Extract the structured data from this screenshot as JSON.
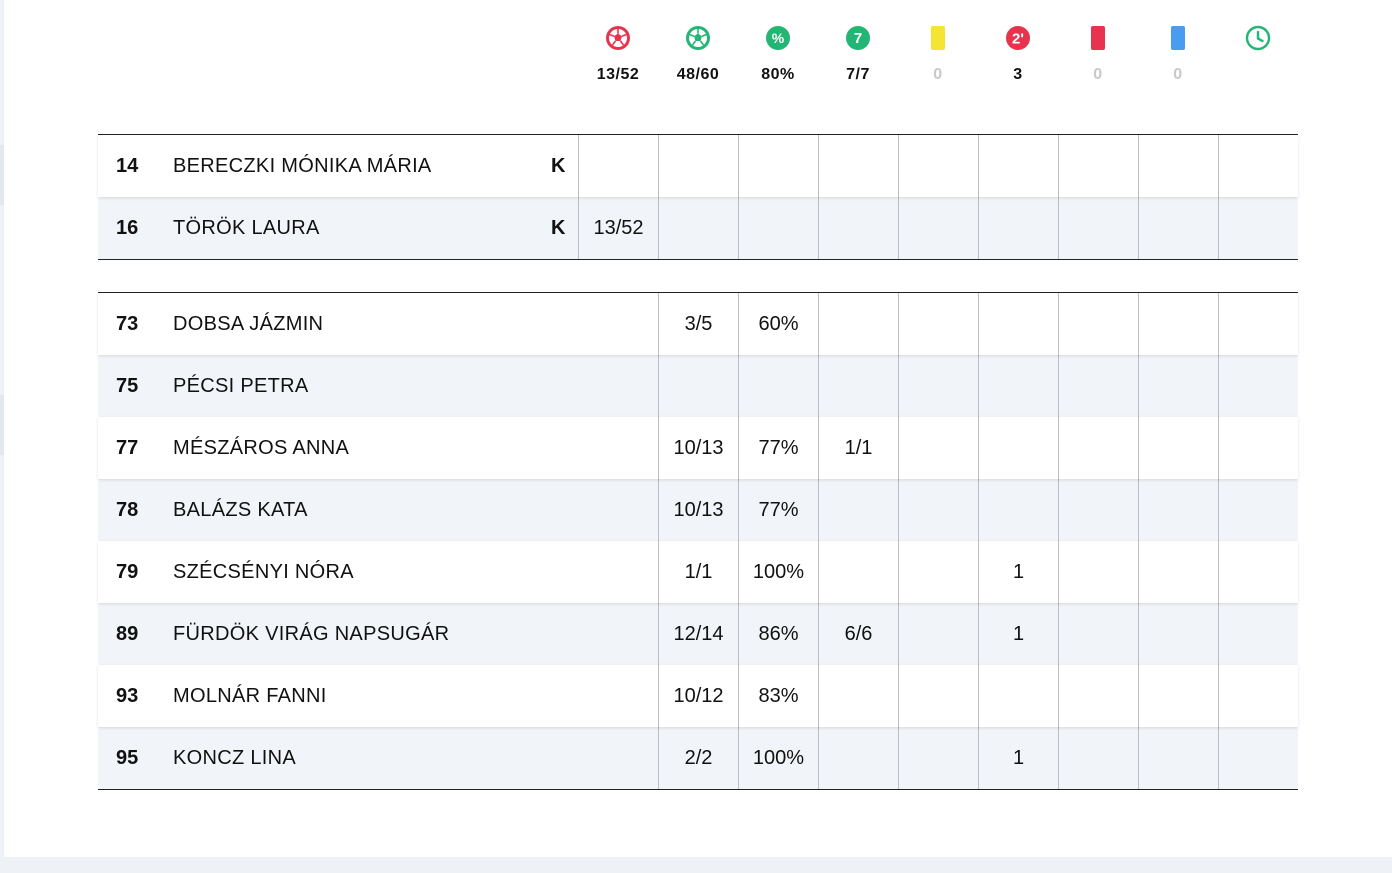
{
  "summary": {
    "stats": [
      {
        "icon": "goalkeeper-ball-icon",
        "value": "13/52",
        "muted": false
      },
      {
        "icon": "goals-ball-icon",
        "value": "48/60",
        "muted": false
      },
      {
        "icon": "percentage-icon",
        "value": "80%",
        "muted": false
      },
      {
        "icon": "seven-meter-icon",
        "value": "7/7",
        "muted": false
      },
      {
        "icon": "yellow-card-icon",
        "value": "0",
        "muted": true
      },
      {
        "icon": "two-minute-suspension-icon",
        "value": "3",
        "muted": false
      },
      {
        "icon": "red-card-icon",
        "value": "0",
        "muted": true
      },
      {
        "icon": "blue-card-icon",
        "value": "0",
        "muted": true
      },
      {
        "icon": "clock-icon",
        "value": "",
        "muted": false
      }
    ],
    "icon_labels": {
      "percent": "%",
      "seven": "7",
      "two_min": "2'"
    }
  },
  "colors": {
    "red": "#e8334f",
    "green": "#22b573",
    "yellow": "#f5e532",
    "blue": "#4a9cf0",
    "muted": "#c8c8c8"
  },
  "goalkeepers": [
    {
      "number": "14",
      "name": "BERECZKI MÓNIKA MÁRIA",
      "role": "K",
      "cells": [
        "",
        "",
        "",
        "",
        "",
        "",
        "",
        "",
        ""
      ]
    },
    {
      "number": "16",
      "name": "TÖRÖK LAURA",
      "role": "K",
      "cells": [
        "13/52",
        "",
        "",
        "",
        "",
        "",
        "",
        "",
        ""
      ]
    }
  ],
  "players": [
    {
      "number": "73",
      "name": "DOBSA JÁZMIN",
      "cells": [
        "3/5",
        "60%",
        "",
        "",
        "",
        "",
        "",
        ""
      ]
    },
    {
      "number": "75",
      "name": "PÉCSI PETRA",
      "cells": [
        "",
        "",
        "",
        "",
        "",
        "",
        "",
        ""
      ]
    },
    {
      "number": "77",
      "name": "MÉSZÁROS ANNA",
      "cells": [
        "10/13",
        "77%",
        "1/1",
        "",
        "",
        "",
        "",
        ""
      ]
    },
    {
      "number": "78",
      "name": "BALÁZS KATA",
      "cells": [
        "10/13",
        "77%",
        "",
        "",
        "",
        "",
        "",
        ""
      ]
    },
    {
      "number": "79",
      "name": "SZÉCSÉNYI NÓRA",
      "cells": [
        "1/1",
        "100%",
        "",
        "",
        "1",
        "",
        "",
        ""
      ]
    },
    {
      "number": "89",
      "name": "FÜRDÖK VIRÁG NAPSUGÁR",
      "cells": [
        "12/14",
        "86%",
        "6/6",
        "",
        "1",
        "",
        "",
        ""
      ]
    },
    {
      "number": "93",
      "name": "MOLNÁR FANNI",
      "cells": [
        "10/12",
        "83%",
        "",
        "",
        "",
        "",
        "",
        ""
      ]
    },
    {
      "number": "95",
      "name": "KONCZ LINA",
      "cells": [
        "2/2",
        "100%",
        "",
        "",
        "1",
        "",
        "",
        ""
      ]
    }
  ]
}
